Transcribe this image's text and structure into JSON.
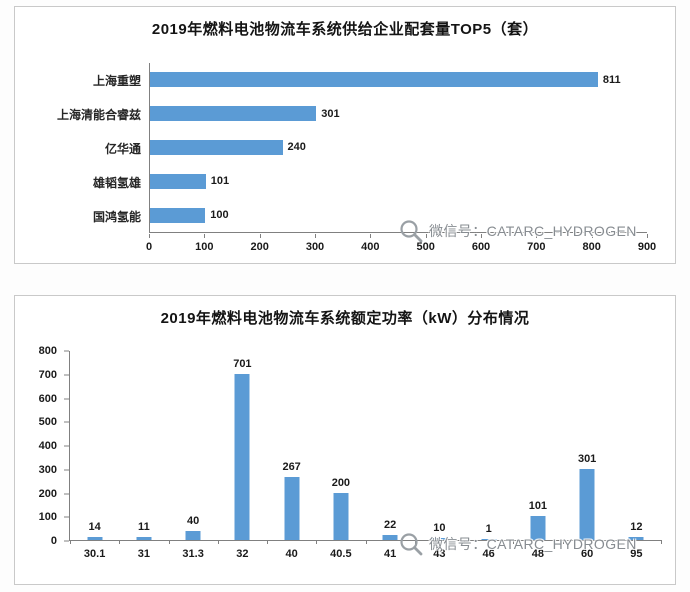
{
  "watermark": {
    "icon": "magnifier-icon",
    "text": "微信号：CATARC_HYDROGEN"
  },
  "colors": {
    "bar": "#5B9BD5",
    "axis": "#808080",
    "label_text": "#1a1a1a",
    "watermark_text": "#878c91",
    "chart_border": "#c9c9c9",
    "background": "#ffffff"
  },
  "chart_data": [
    {
      "type": "bar",
      "orientation": "horizontal",
      "title": "2019年燃料电池物流车系统供给企业配套量TOP5（套）",
      "categories": [
        "上海重塑",
        "上海清能合睿兹",
        "亿华通",
        "雄韬氢雄",
        "国鸿氢能"
      ],
      "values": [
        811,
        301,
        240,
        101,
        100
      ],
      "x_ticks": [
        0,
        100,
        200,
        300,
        400,
        500,
        600,
        700,
        800,
        900
      ],
      "xlim": [
        0,
        900
      ],
      "grid": false,
      "legend": false,
      "data_labels": true
    },
    {
      "type": "bar",
      "orientation": "vertical",
      "title": "2019年燃料电池物流车系统额定功率（kW）分布情况",
      "categories": [
        "30.1",
        "31",
        "31.3",
        "32",
        "40",
        "40.5",
        "41",
        "43",
        "46",
        "48",
        "60",
        "95"
      ],
      "values": [
        14,
        11,
        40,
        701,
        267,
        200,
        22,
        10,
        1,
        101,
        301,
        12
      ],
      "y_ticks": [
        0,
        100,
        200,
        300,
        400,
        500,
        600,
        700,
        800
      ],
      "ylim": [
        0,
        800
      ],
      "grid": false,
      "legend": false,
      "data_labels": true
    }
  ]
}
